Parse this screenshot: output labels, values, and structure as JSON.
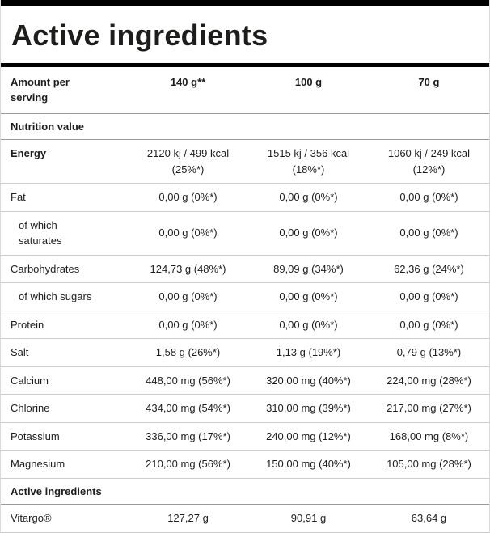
{
  "title": "Active ingredients",
  "header": {
    "label": "Amount per\nserving",
    "columns": [
      "140 g**",
      "100 g",
      "70 g"
    ]
  },
  "sections": [
    {
      "name": "Nutrition value",
      "rows": [
        {
          "label": "Energy",
          "indent": false,
          "bold": true,
          "cells": [
            "2120 kj / 499 kcal\n(25%*)",
            "1515 kj / 356 kcal\n(18%*)",
            "1060 kj / 249 kcal\n(12%*)"
          ]
        },
        {
          "label": "Fat",
          "indent": false,
          "bold": false,
          "cells": [
            "0,00 g (0%*)",
            "0,00 g (0%*)",
            "0,00 g (0%*)"
          ]
        },
        {
          "label": "of which\nsaturates",
          "indent": true,
          "bold": false,
          "cells": [
            "0,00 g (0%*)",
            "0,00 g (0%*)",
            "0,00 g (0%*)"
          ]
        },
        {
          "label": "Carbohydrates",
          "indent": false,
          "bold": false,
          "cells": [
            "124,73 g (48%*)",
            "89,09 g (34%*)",
            "62,36 g (24%*)"
          ]
        },
        {
          "label": "of which sugars",
          "indent": true,
          "bold": false,
          "cells": [
            "0,00 g (0%*)",
            "0,00 g (0%*)",
            "0,00 g (0%*)"
          ]
        },
        {
          "label": "Protein",
          "indent": false,
          "bold": false,
          "cells": [
            "0,00 g (0%*)",
            "0,00 g (0%*)",
            "0,00 g (0%*)"
          ]
        },
        {
          "label": "Salt",
          "indent": false,
          "bold": false,
          "cells": [
            "1,58 g (26%*)",
            "1,13 g (19%*)",
            "0,79 g (13%*)"
          ]
        },
        {
          "label": "Calcium",
          "indent": false,
          "bold": false,
          "cells": [
            "448,00 mg (56%*)",
            "320,00 mg (40%*)",
            "224,00 mg (28%*)"
          ]
        },
        {
          "label": "Chlorine",
          "indent": false,
          "bold": false,
          "cells": [
            "434,00 mg (54%*)",
            "310,00 mg (39%*)",
            "217,00 mg (27%*)"
          ]
        },
        {
          "label": "Potassium",
          "indent": false,
          "bold": false,
          "cells": [
            "336,00 mg (17%*)",
            "240,00 mg (12%*)",
            "168,00 mg (8%*)"
          ]
        },
        {
          "label": "Magnesium",
          "indent": false,
          "bold": false,
          "cells": [
            "210,00 mg (56%*)",
            "150,00 mg (40%*)",
            "105,00 mg (28%*)"
          ]
        }
      ]
    },
    {
      "name": "Active ingredients",
      "rows": [
        {
          "label": "Vitargo®",
          "indent": false,
          "bold": false,
          "cells": [
            "127,27 g",
            "90,91 g",
            "63,64 g"
          ]
        }
      ]
    }
  ],
  "colors": {
    "text": "#1d1d1b",
    "bar": "#000000",
    "row_border": "#cccccc",
    "section_border": "#9a9a9a"
  }
}
